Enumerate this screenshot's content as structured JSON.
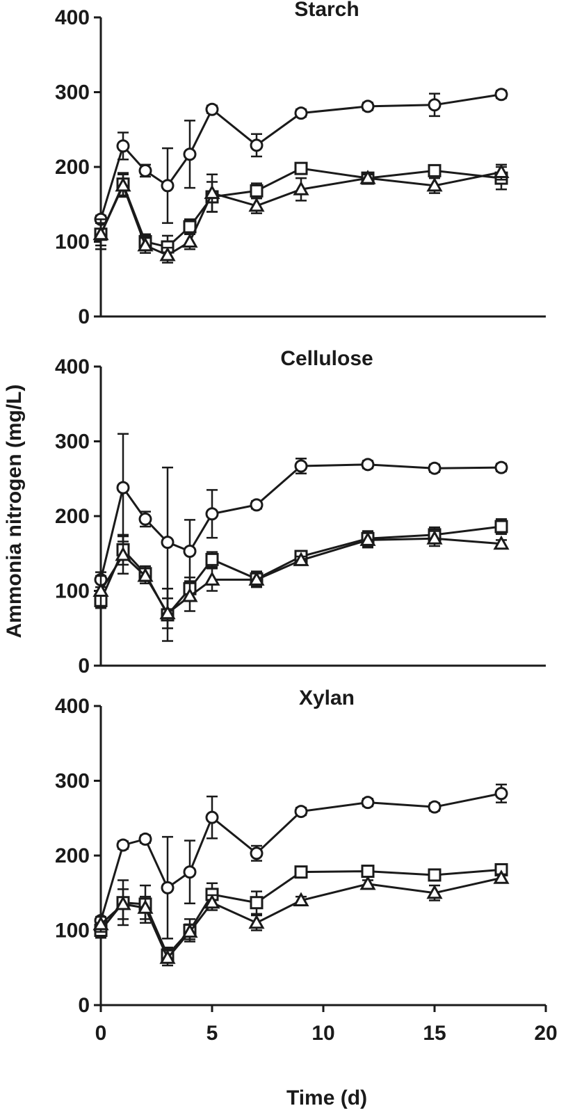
{
  "chart_data": {
    "type": "line",
    "ylabel": "Ammonia nitrogen (mg/L)",
    "xlabel": "Time (d)",
    "xlim": [
      0,
      20
    ],
    "xticks": [
      0,
      5,
      10,
      15,
      20
    ],
    "ylim": [
      0,
      400
    ],
    "yticks": [
      0,
      100,
      200,
      300,
      400
    ],
    "x": [
      0,
      1,
      2,
      3,
      4,
      5,
      7,
      9,
      12,
      15,
      18
    ],
    "panels": [
      {
        "title": "Starch",
        "series": [
          {
            "marker": "circle",
            "values": [
              130,
              228,
              195,
              175,
              217,
              277,
              229,
              272,
              281,
              283,
              297
            ],
            "errors": [
              5,
              18,
              8,
              50,
              45,
              5,
              15,
              5,
              5,
              15,
              5
            ]
          },
          {
            "marker": "square",
            "values": [
              110,
              177,
              100,
              93,
              120,
              160,
              168,
              198,
              185,
              195,
              185
            ],
            "errors": [
              20,
              15,
              10,
              15,
              10,
              20,
              10,
              5,
              5,
              5,
              15
            ]
          },
          {
            "marker": "triangle",
            "values": [
              110,
              175,
              95,
              82,
              100,
              165,
              148,
              170,
              185,
              175,
              193
            ],
            "errors": [
              15,
              15,
              10,
              10,
              10,
              25,
              10,
              15,
              5,
              10,
              10
            ]
          }
        ]
      },
      {
        "title": "Cellulose",
        "series": [
          {
            "marker": "circle",
            "values": [
              115,
              238,
              196,
              165,
              153,
              203,
              215,
              267,
              269,
              264,
              265
            ],
            "errors": [
              10,
              72,
              10,
              100,
              42,
              32,
              5,
              10,
              5,
              5,
              5
            ]
          },
          {
            "marker": "square",
            "values": [
              87,
              155,
              123,
              68,
              103,
              142,
              116,
              146,
              170,
              175,
              186
            ],
            "errors": [
              10,
              20,
              10,
              35,
              15,
              10,
              10,
              5,
              10,
              10,
              10
            ]
          },
          {
            "marker": "triangle",
            "values": [
              100,
              148,
              120,
              70,
              93,
              115,
              115,
              141,
              168,
              170,
              163
            ],
            "errors": [
              20,
              25,
              10,
              20,
              20,
              15,
              10,
              5,
              10,
              10,
              5
            ]
          }
        ]
      },
      {
        "title": "Xylan",
        "series": [
          {
            "marker": "circle",
            "values": [
              113,
              214,
              222,
              157,
              178,
              251,
              203,
              259,
              271,
              265,
              283
            ],
            "errors": [
              5,
              5,
              5,
              68,
              42,
              28,
              10,
              5,
              5,
              5,
              12
            ]
          },
          {
            "marker": "square",
            "values": [
              100,
              137,
              135,
              67,
              100,
              148,
              137,
              178,
              179,
              174,
              181
            ],
            "errors": [
              10,
              30,
              25,
              10,
              15,
              15,
              15,
              5,
              5,
              5,
              5
            ]
          },
          {
            "marker": "triangle",
            "values": [
              108,
              135,
              130,
              63,
              98,
              137,
              110,
              140,
              162,
              150,
              170
            ],
            "errors": [
              10,
              20,
              15,
              10,
              10,
              10,
              10,
              5,
              5,
              10,
              5
            ]
          }
        ]
      }
    ]
  }
}
